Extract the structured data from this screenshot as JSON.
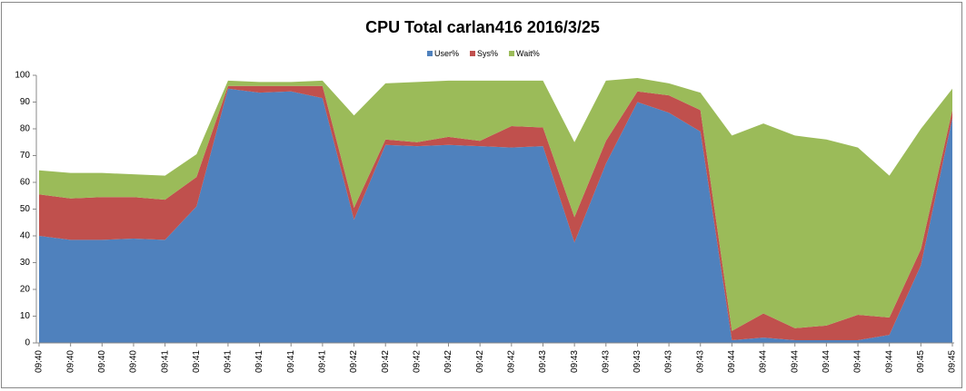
{
  "chart_data": {
    "type": "stacked_area",
    "title": "CPU Total carlan416  2016/3/25",
    "categories": [
      "09:40",
      "09:40",
      "09:40",
      "09:40",
      "09:41",
      "09:41",
      "09:41",
      "09:41",
      "09:41",
      "09:41",
      "09:42",
      "09:42",
      "09:42",
      "09:42",
      "09:42",
      "09:42",
      "09:43",
      "09:43",
      "09:43",
      "09:43",
      "09:43",
      "09:43",
      "09:44",
      "09:44",
      "09:44",
      "09:44",
      "09:44",
      "09:44",
      "09:45",
      "09:45"
    ],
    "series": [
      {
        "name": "User%",
        "color": "#4f81bd",
        "values": [
          40,
          38.5,
          38.5,
          39,
          38.5,
          51,
          95,
          93.5,
          94,
          91.5,
          46,
          74,
          73.5,
          74,
          73.5,
          73,
          73.5,
          37.5,
          67,
          90,
          86,
          79,
          1,
          2,
          1,
          1,
          1,
          3,
          29,
          84
        ]
      },
      {
        "name": "Sys%",
        "color": "#c0504d",
        "values": [
          15.5,
          15.5,
          16,
          15.5,
          15,
          11,
          1,
          2.5,
          2,
          4.5,
          4.5,
          2,
          1.5,
          3,
          2,
          8,
          7,
          9.5,
          8.5,
          4,
          6.5,
          8,
          3.5,
          9,
          4.5,
          5.5,
          9.5,
          6.5,
          6,
          3
        ]
      },
      {
        "name": "Wait%",
        "color": "#9bbb59",
        "values": [
          9,
          9.5,
          9,
          8.5,
          9,
          8.5,
          2,
          1.5,
          1.5,
          2,
          34.5,
          21,
          22.5,
          21,
          22.5,
          17,
          17.5,
          28,
          22.5,
          5,
          4.5,
          6.5,
          73,
          71,
          72,
          69.5,
          62.5,
          53,
          45,
          8
        ]
      }
    ],
    "ylim": [
      0,
      100
    ],
    "yticks": [
      0,
      10,
      20,
      30,
      40,
      50,
      60,
      70,
      80,
      90,
      100
    ],
    "legend": "top"
  }
}
